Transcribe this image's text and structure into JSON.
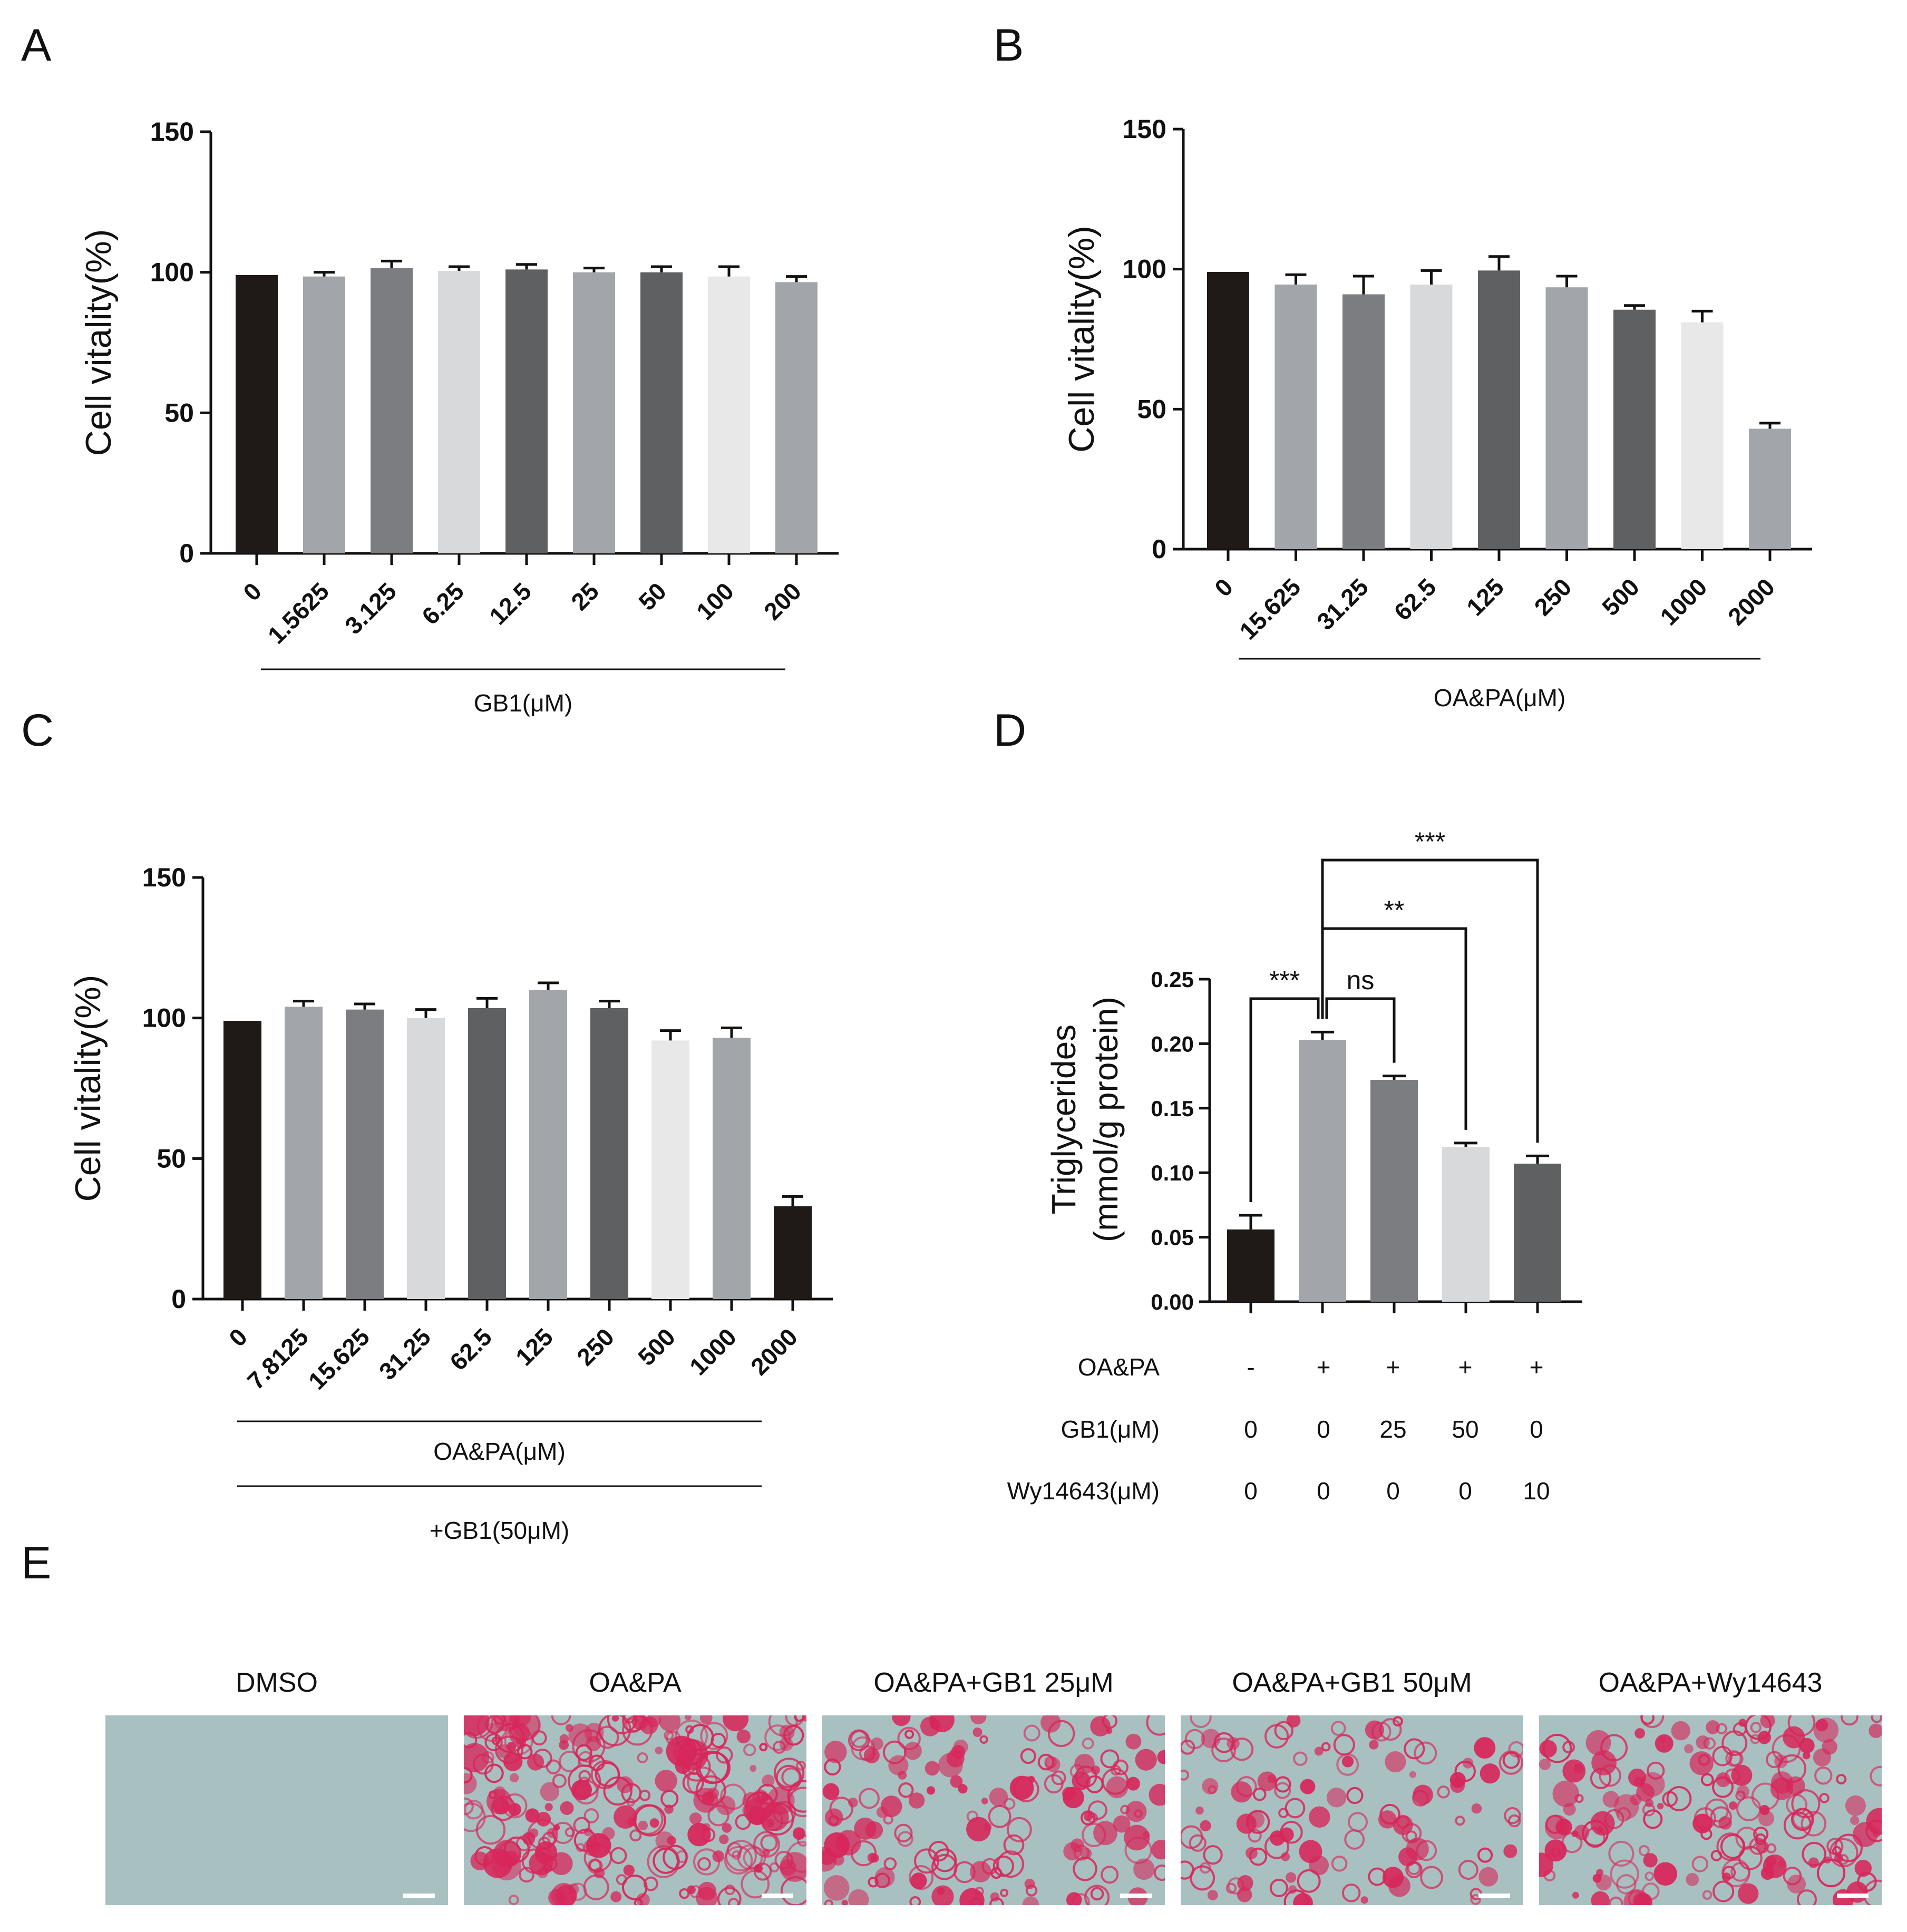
{
  "panels": {
    "A": "A",
    "B": "B",
    "C": "C",
    "D": "D",
    "E": "E"
  },
  "colors": {
    "black": "#1f1a17",
    "gray_mid": "#a2a5a9",
    "gray_dark": "#7b7d80",
    "gray_light": "#d8d9da",
    "gray_darker": "#5e6062",
    "gray_lightest": "#e8e8e8",
    "stain_bg": "#a9c0c1",
    "stain_red": "#d7265a"
  },
  "chart_data": [
    {
      "id": "A",
      "type": "bar",
      "ylabel": "Cell vitality(%)",
      "ylim": [
        0,
        150
      ],
      "yticks": [
        0,
        50,
        100,
        150
      ],
      "categories": [
        "0",
        "1.5625",
        "3.125",
        "6.25",
        "12.5",
        "25",
        "50",
        "100",
        "200"
      ],
      "values": [
        99,
        98.5,
        101.5,
        100.5,
        101,
        100,
        100,
        98.5,
        96.5
      ],
      "errors": [
        0,
        1.5,
        2.5,
        1.5,
        1.8,
        1.5,
        2,
        3.5,
        2
      ],
      "group_labels": [
        "GB1(μM)"
      ]
    },
    {
      "id": "B",
      "type": "bar",
      "ylabel": "Cell vitality(%)",
      "ylim": [
        0,
        150
      ],
      "yticks": [
        0,
        50,
        100,
        150
      ],
      "categories": [
        "0",
        "15.625",
        "31.25",
        "62.5",
        "125",
        "250",
        "500",
        "1000",
        "2000"
      ],
      "values": [
        99,
        94.5,
        91,
        94.5,
        99.5,
        93.5,
        85.5,
        81,
        43
      ],
      "errors": [
        0,
        3.5,
        6.5,
        5,
        5,
        4,
        1.5,
        4,
        2
      ],
      "group_labels": [
        "OA&PA(μM)"
      ]
    },
    {
      "id": "C",
      "type": "bar",
      "ylabel": "Cell vitality(%)",
      "ylim": [
        0,
        150
      ],
      "yticks": [
        0,
        50,
        100,
        150
      ],
      "categories": [
        "0",
        "7.8125",
        "15.625",
        "31.25",
        "62.5",
        "125",
        "250",
        "500",
        "1000",
        "2000"
      ],
      "values": [
        99,
        104,
        103,
        100,
        103.5,
        110,
        103.5,
        92,
        93,
        33
      ],
      "errors": [
        0,
        2,
        2,
        3,
        3.5,
        2.5,
        2.5,
        3.5,
        3.5,
        3.5
      ],
      "group_labels": [
        "OA&PA(μM)",
        "+GB1(50μM)"
      ]
    },
    {
      "id": "D",
      "type": "bar",
      "ylabel_line1": "Triglycerides",
      "ylabel_line2": "(mmol/g protein)",
      "ylim": [
        0,
        0.25
      ],
      "yticks": [
        "0.00",
        "0.05",
        "0.10",
        "0.15",
        "0.20",
        "0.25"
      ],
      "values": [
        0.056,
        0.203,
        0.172,
        0.12,
        0.107
      ],
      "errors": [
        0.011,
        0.006,
        0.003,
        0.003,
        0.006
      ],
      "rows": [
        {
          "label": "OA&PA",
          "cells": [
            "-",
            "+",
            "+",
            "+",
            "+"
          ]
        },
        {
          "label": "GB1(μM)",
          "cells": [
            "0",
            "0",
            "25",
            "50",
            "0"
          ]
        },
        {
          "label": "Wy14643(μM)",
          "cells": [
            "0",
            "0",
            "0",
            "0",
            "10"
          ]
        }
      ],
      "significance": [
        {
          "from": 0,
          "to": 1,
          "label": "***"
        },
        {
          "from": 1,
          "to": 2,
          "label": "ns"
        },
        {
          "from": 1,
          "to": 3,
          "label": "**"
        },
        {
          "from": 1,
          "to": 4,
          "label": "***"
        }
      ]
    }
  ],
  "images": {
    "labels": [
      "DMSO",
      "OA&PA",
      "OA&PA+GB1  25μM",
      "OA&PA+GB1  50μM",
      "OA&PA+Wy14643"
    ],
    "density": [
      0.0,
      1.0,
      0.6,
      0.45,
      0.7
    ]
  }
}
